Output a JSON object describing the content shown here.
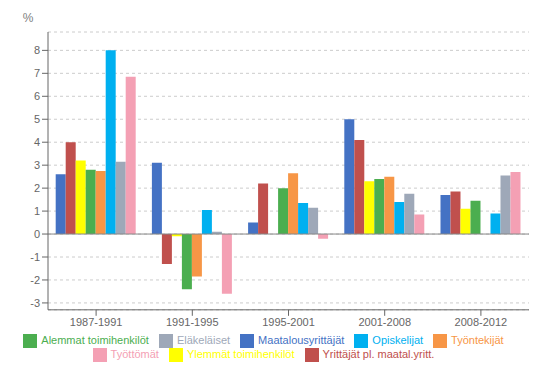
{
  "chart_data": {
    "type": "bar",
    "categories": [
      "1987-1991",
      "1991-1995",
      "1995-2001",
      "2001-2008",
      "2008-2012"
    ],
    "series": [
      {
        "name": "Maatalousyrittäjät",
        "color": "#4472C4",
        "values": [
          2.6,
          3.1,
          0.5,
          5.0,
          1.7
        ]
      },
      {
        "name": "Yrittäjät pl. maatal.yritt.",
        "color": "#C0504D",
        "values": [
          4.0,
          -1.3,
          2.2,
          4.1,
          1.85
        ]
      },
      {
        "name": "Ylemmät toimihenkilöt",
        "color": "#FFFF00",
        "values": [
          3.2,
          -0.1,
          0.0,
          2.3,
          1.1
        ]
      },
      {
        "name": "Alemmat toimihenkilöt",
        "color": "#4BAE4F",
        "values": [
          2.8,
          -2.4,
          2.0,
          2.4,
          1.45
        ]
      },
      {
        "name": "Työntekijät",
        "color": "#F79646",
        "values": [
          2.75,
          -1.85,
          2.65,
          2.5,
          0.0
        ]
      },
      {
        "name": "Opiskelijat",
        "color": "#00B0F0",
        "values": [
          8.0,
          1.05,
          1.35,
          1.4,
          0.9
        ]
      },
      {
        "name": "Eläkeläiset",
        "color": "#9EA8B8",
        "values": [
          3.15,
          0.1,
          1.15,
          1.75,
          2.55
        ]
      },
      {
        "name": "Työttömät",
        "color": "#F4A0B4",
        "values": [
          6.85,
          -2.6,
          -0.2,
          0.85,
          2.7
        ]
      }
    ],
    "ylabel": "%",
    "ylim": [
      -3.3,
      8.8
    ],
    "yticks": [
      -3,
      -2,
      -1,
      0,
      1,
      2,
      3,
      4,
      5,
      6,
      7,
      8
    ],
    "grid": true,
    "legend": "bottom"
  }
}
